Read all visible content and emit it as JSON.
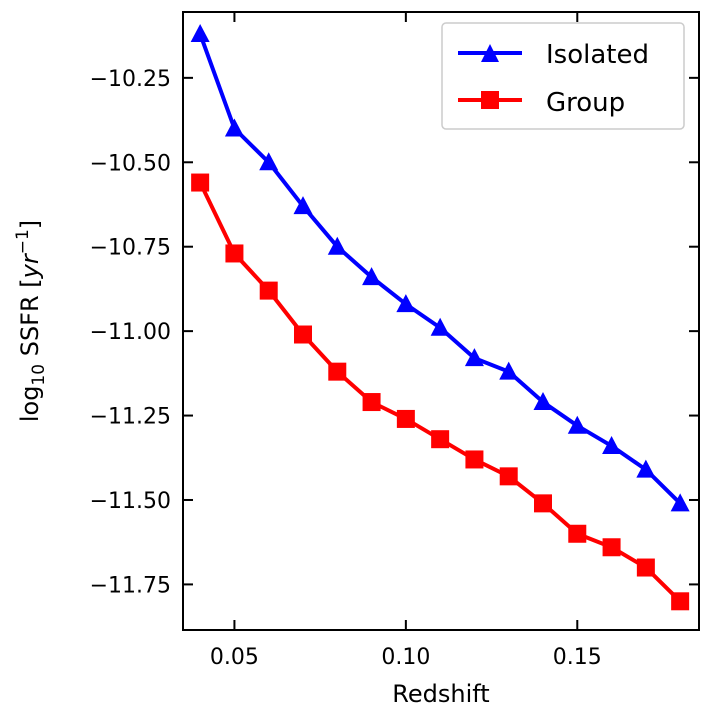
{
  "chart_data": {
    "type": "line",
    "title": "",
    "xlabel": "Redshift",
    "ylabel": {
      "prefix": "log",
      "subscript": "10",
      "middle": " SSFR [",
      "unit": "yr",
      "exponent": "−1",
      "suffix": "]"
    },
    "xlim": [
      0.035,
      0.1855
    ],
    "ylim": [
      -11.885,
      -10.055
    ],
    "x": [
      0.04,
      0.05,
      0.06,
      0.07,
      0.08,
      0.09,
      0.1,
      0.11,
      0.12,
      0.13,
      0.14,
      0.15,
      0.16,
      0.17,
      0.18
    ],
    "xticks": [
      {
        "value": 0.05,
        "label": "0.05"
      },
      {
        "value": 0.1,
        "label": "0.10"
      },
      {
        "value": 0.15,
        "label": "0.15"
      }
    ],
    "yticks": [
      {
        "value": -10.25,
        "label": "−10.25"
      },
      {
        "value": -10.5,
        "label": "−10.50"
      },
      {
        "value": -10.75,
        "label": "−10.75"
      },
      {
        "value": -11.0,
        "label": "−11.00"
      },
      {
        "value": -11.25,
        "label": "−11.25"
      },
      {
        "value": -11.5,
        "label": "−11.50"
      },
      {
        "value": -11.75,
        "label": "−11.75"
      }
    ],
    "grid": false,
    "legend_position": "top-right",
    "series": [
      {
        "name": "Isolated",
        "color": "#0000ff",
        "marker": "triangle",
        "values": [
          -10.12,
          -10.4,
          -10.5,
          -10.63,
          -10.75,
          -10.84,
          -10.92,
          -10.99,
          -11.08,
          -11.12,
          -11.21,
          -11.28,
          -11.34,
          -11.41,
          -11.51
        ]
      },
      {
        "name": "Group",
        "color": "#ff0000",
        "marker": "square",
        "values": [
          -10.56,
          -10.77,
          -10.88,
          -11.01,
          -11.12,
          -11.21,
          -11.26,
          -11.32,
          -11.38,
          -11.43,
          -11.51,
          -11.6,
          -11.64,
          -11.7,
          -11.8
        ]
      }
    ]
  }
}
